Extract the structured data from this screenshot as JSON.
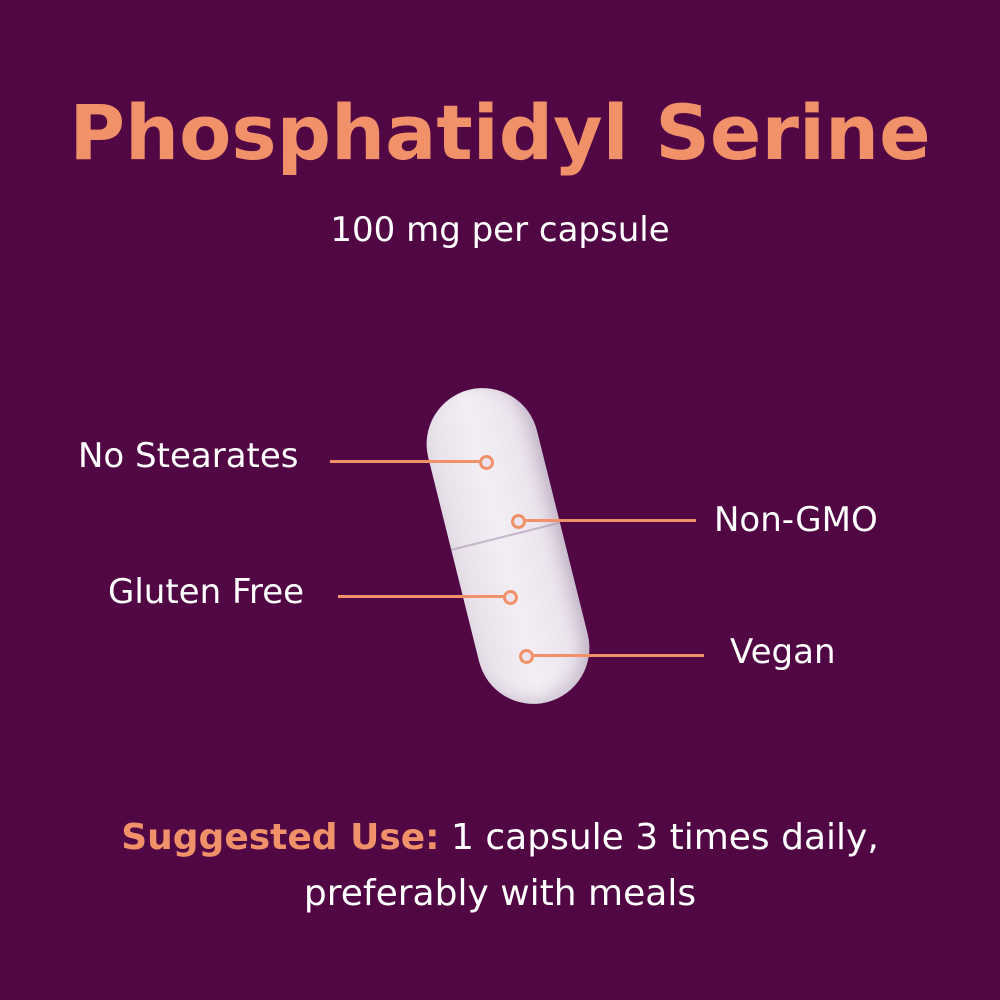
{
  "title": "Phosphatidyl Serine",
  "subtitle": "100 mg per capsule",
  "features": [
    "No Stearates",
    "Non-GMO",
    "Gluten Free",
    "Vegan"
  ],
  "suggested_use": {
    "label": "Suggested Use:",
    "line1": "1 capsule 3 times daily,",
    "line2": "preferably with meals"
  },
  "colors": {
    "background": "#520745",
    "accent": "#f0916a",
    "text": "#ffffff"
  },
  "image": "white-capsule"
}
